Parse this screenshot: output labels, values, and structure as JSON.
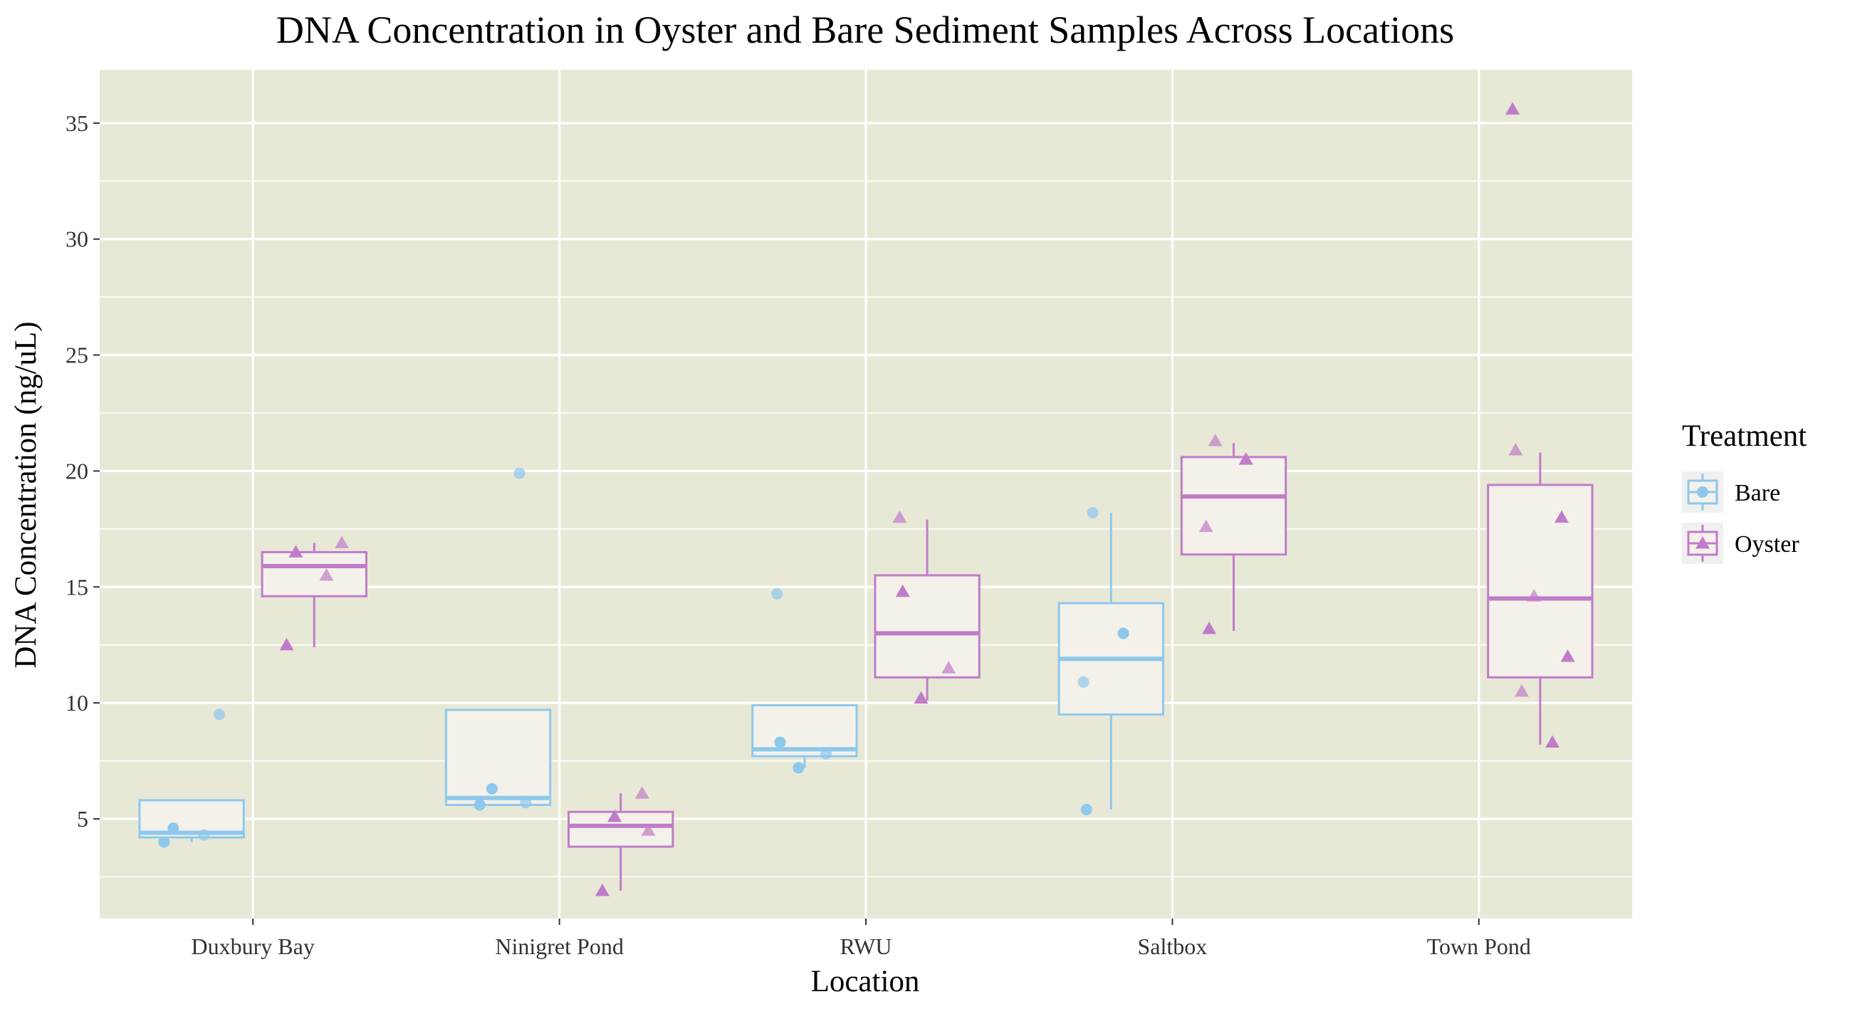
{
  "chart_data": {
    "type": "boxplot",
    "title": "DNA Concentration in Oyster and Bare Sediment Samples Across Locations",
    "xlabel": "Location",
    "ylabel": "DNA Concentration (ng/uL)",
    "categories": [
      "Duxbury Bay",
      "Ninigret Pond",
      "RWU",
      "Saltbox",
      "Town Pond"
    ],
    "yticks": [
      5,
      10,
      15,
      20,
      25,
      30,
      35
    ],
    "ylim": [
      0.7,
      37.3
    ],
    "grid": true,
    "legend": {
      "title": "Treatment",
      "position": "right"
    },
    "series": [
      {
        "name": "Bare",
        "color": "#8EC8EC",
        "marker": "circle",
        "boxes": [
          {
            "category": "Duxbury Bay",
            "whisker_low": 4.0,
            "q1": 4.2,
            "median": 4.4,
            "q3": 5.8,
            "whisker_high": 5.8,
            "points": [
              4.0,
              4.3,
              4.6,
              9.5
            ]
          },
          {
            "category": "Ninigret Pond",
            "whisker_low": 5.6,
            "q1": 5.6,
            "median": 5.9,
            "q3": 9.7,
            "whisker_high": 9.7,
            "points": [
              5.6,
              5.7,
              6.3,
              19.9
            ]
          },
          {
            "category": "RWU",
            "whisker_low": 7.2,
            "q1": 7.7,
            "median": 8.0,
            "q3": 9.9,
            "whisker_high": 9.9,
            "points": [
              7.2,
              7.8,
              8.3,
              14.7
            ]
          },
          {
            "category": "Saltbox",
            "whisker_low": 5.4,
            "q1": 9.5,
            "median": 11.9,
            "q3": 14.3,
            "whisker_high": 18.2,
            "points": [
              5.4,
              10.9,
              13.0,
              18.2
            ]
          }
        ]
      },
      {
        "name": "Oyster",
        "color": "#C07CC8",
        "marker": "triangle",
        "boxes": [
          {
            "category": "Duxbury Bay",
            "whisker_low": 12.4,
            "q1": 14.6,
            "median": 15.9,
            "q3": 16.5,
            "whisker_high": 16.9,
            "points": [
              12.5,
              15.5,
              16.5,
              16.9
            ]
          },
          {
            "category": "Ninigret Pond",
            "whisker_low": 1.9,
            "q1": 3.8,
            "median": 4.7,
            "q3": 5.3,
            "whisker_high": 6.1,
            "points": [
              1.9,
              4.5,
              5.1,
              6.1
            ]
          },
          {
            "category": "RWU",
            "whisker_low": 10.1,
            "q1": 11.1,
            "median": 13.0,
            "q3": 15.5,
            "whisker_high": 17.9,
            "points": [
              10.2,
              11.5,
              14.8,
              18.0
            ]
          },
          {
            "category": "Saltbox",
            "whisker_low": 13.1,
            "q1": 16.4,
            "median": 18.9,
            "q3": 20.6,
            "whisker_high": 21.2,
            "points": [
              13.2,
              17.6,
              20.5,
              21.3
            ]
          },
          {
            "category": "Town Pond",
            "whisker_low": 8.2,
            "q1": 11.1,
            "median": 14.5,
            "q3": 19.4,
            "whisker_high": 20.8,
            "points": [
              8.3,
              10.5,
              12.0,
              14.6,
              18.0,
              20.9,
              35.6
            ]
          }
        ]
      }
    ]
  }
}
